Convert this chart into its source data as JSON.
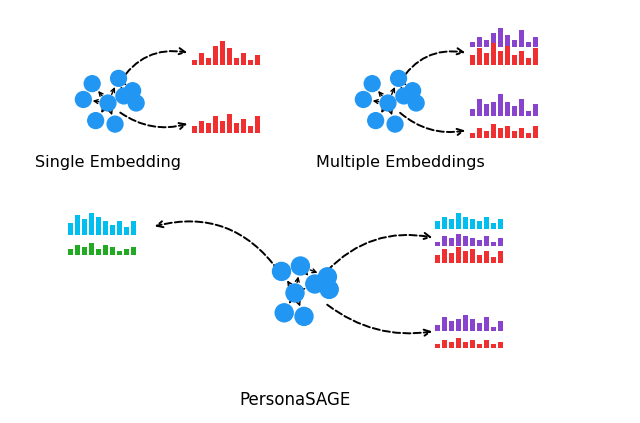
{
  "node_color": "#2196F3",
  "red_color": "#F03030",
  "purple_color": "#8844CC",
  "cyan_color": "#00BFEF",
  "green_color": "#22AA22",
  "label_single": "Single Embedding",
  "label_multiple": "Multiple Embeddings",
  "label_persona": "PersonaSAGE",
  "bg_color": "#ffffff",
  "bar_vals_r1": [
    2,
    5,
    3,
    8,
    10,
    7,
    3,
    5,
    2,
    4
  ],
  "bar_vals_r2": [
    3,
    5,
    4,
    7,
    5,
    8,
    4,
    6,
    3,
    7
  ],
  "bar_vals_p1_top": [
    2,
    4,
    3,
    6,
    8,
    5,
    3,
    7,
    2,
    4
  ],
  "bar_vals_r1_top": [
    4,
    7,
    5,
    9,
    6,
    8,
    4,
    6,
    3,
    7
  ],
  "bar_vals_p1_bot": [
    3,
    7,
    5,
    6,
    9,
    6,
    4,
    7,
    2,
    5
  ],
  "bar_vals_r1_bot": [
    2,
    4,
    3,
    6,
    4,
    5,
    3,
    4,
    2,
    5
  ],
  "bar_vals_cyan_in": [
    6,
    10,
    8,
    11,
    9,
    7,
    5,
    7,
    4,
    7
  ],
  "bar_vals_green_in": [
    3,
    5,
    4,
    6,
    3,
    5,
    4,
    2,
    3,
    4
  ],
  "bar_vals_cyan_out": [
    4,
    6,
    5,
    8,
    6,
    5,
    4,
    6,
    3,
    5
  ],
  "bar_vals_pur_out1": [
    2,
    5,
    4,
    6,
    5,
    4,
    3,
    5,
    2,
    4
  ],
  "bar_vals_red_out1": [
    4,
    7,
    5,
    8,
    6,
    7,
    4,
    6,
    3,
    6
  ],
  "bar_vals_pur_out2": [
    3,
    7,
    5,
    6,
    8,
    6,
    4,
    7,
    2,
    5
  ],
  "bar_vals_red_out2": [
    2,
    4,
    3,
    5,
    3,
    4,
    2,
    4,
    2,
    3
  ]
}
